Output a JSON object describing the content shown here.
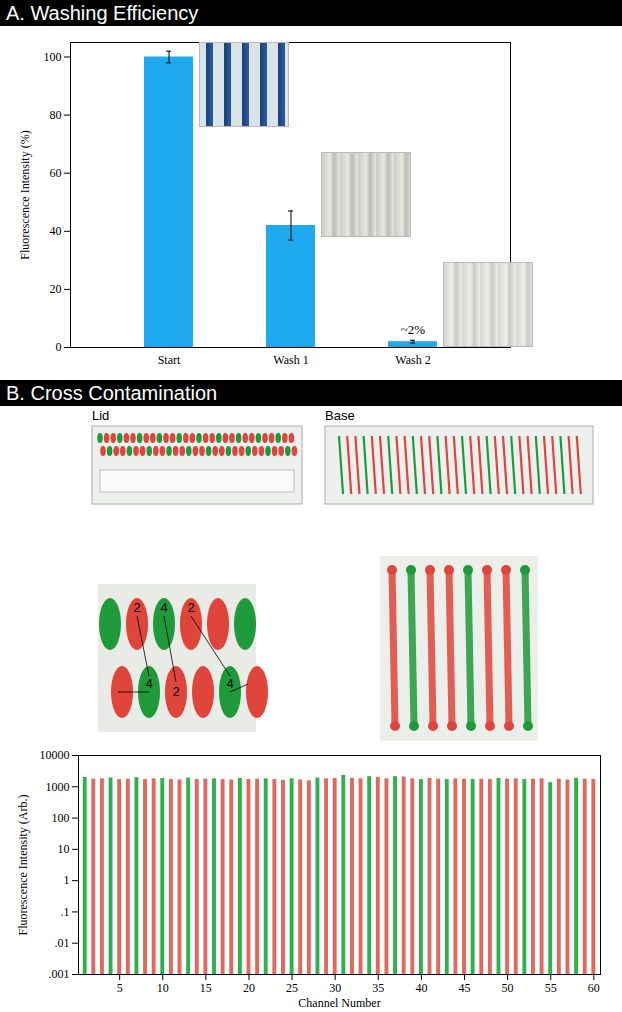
{
  "chart_data": [
    {
      "type": "bar",
      "title": "A. Washing Efficiency",
      "categories": [
        "Start",
        "Wash 1",
        "Wash 2"
      ],
      "values": [
        100,
        42,
        2
      ],
      "errors": [
        2,
        5,
        0.5
      ],
      "color": "#1fa9ee",
      "y_label": "Fluorescence Intensity (%)",
      "ylim": [
        0,
        105
      ],
      "yticks": [
        0,
        20,
        40,
        60,
        80,
        100
      ],
      "annotations": [
        {
          "category": "Wash 2",
          "text": "~2%"
        }
      ]
    },
    {
      "type": "bar",
      "title": "B. Cross Contamination",
      "image_labels": [
        "Lid",
        "Base"
      ],
      "lid_detail_labels": [
        "2",
        "4",
        "2",
        "4",
        "2",
        "4"
      ],
      "log": "y",
      "x_label": "Channel Number",
      "y_label": "Fluorescence Intensity (Arb.)",
      "x": [
        1,
        2,
        3,
        4,
        5,
        6,
        7,
        8,
        9,
        10,
        11,
        12,
        13,
        14,
        15,
        16,
        17,
        18,
        19,
        20,
        21,
        22,
        23,
        24,
        25,
        26,
        27,
        28,
        29,
        30,
        31,
        32,
        33,
        34,
        35,
        36,
        37,
        38,
        39,
        40,
        41,
        42,
        43,
        44,
        45,
        46,
        47,
        48,
        49,
        50,
        51,
        52,
        53,
        54,
        55,
        56,
        57,
        58,
        59,
        60
      ],
      "values": [
        2000,
        1750,
        1800,
        1900,
        1700,
        1750,
        1950,
        1700,
        1800,
        1850,
        1700,
        1650,
        1900,
        1700,
        1750,
        1800,
        1700,
        1650,
        1850,
        1700,
        1750,
        1800,
        1700,
        1600,
        1800,
        1650,
        1550,
        1900,
        1800,
        1850,
        2300,
        1850,
        1800,
        2100,
        2000,
        1800,
        2100,
        2050,
        1800,
        1700,
        1850,
        1750,
        1700,
        1800,
        1750,
        1700,
        1750,
        1700,
        1850,
        1750,
        1800,
        1700,
        1750,
        1800,
        1350,
        1750,
        1650,
        1850,
        1750,
        1700
      ],
      "colors": [
        "#2bb24c",
        "#e2675c",
        "#e2675c",
        "#2bb24c",
        "#e2675c",
        "#e2675c",
        "#2bb24c",
        "#e2675c",
        "#e2675c",
        "#2bb24c",
        "#e2675c",
        "#e2675c",
        "#2bb24c",
        "#e2675c",
        "#e2675c",
        "#2bb24c",
        "#e2675c",
        "#e2675c",
        "#2bb24c",
        "#e2675c",
        "#e2675c",
        "#2bb24c",
        "#e2675c",
        "#e2675c",
        "#2bb24c",
        "#e2675c",
        "#e2675c",
        "#2bb24c",
        "#e2675c",
        "#e2675c",
        "#2bb24c",
        "#e2675c",
        "#e2675c",
        "#2bb24c",
        "#e2675c",
        "#e2675c",
        "#2bb24c",
        "#e2675c",
        "#e2675c",
        "#2bb24c",
        "#e2675c",
        "#e2675c",
        "#2bb24c",
        "#e2675c",
        "#e2675c",
        "#2bb24c",
        "#e2675c",
        "#e2675c",
        "#2bb24c",
        "#e2675c",
        "#e2675c",
        "#2bb24c",
        "#e2675c",
        "#e2675c",
        "#2bb24c",
        "#e2675c",
        "#e2675c",
        "#2bb24c",
        "#e2675c",
        "#e2675c"
      ],
      "xlim": [
        1,
        60
      ],
      "xticks": [
        5,
        10,
        15,
        20,
        25,
        30,
        35,
        40,
        45,
        50,
        55,
        60
      ],
      "ylim": [
        0.001,
        10000
      ],
      "yticks": [
        {
          "value": 0.001,
          "label": ".001"
        },
        {
          "value": 0.01,
          "label": ".01"
        },
        {
          "value": 0.1,
          "label": ".1"
        },
        1,
        10,
        100,
        1000,
        10000
      ]
    }
  ]
}
